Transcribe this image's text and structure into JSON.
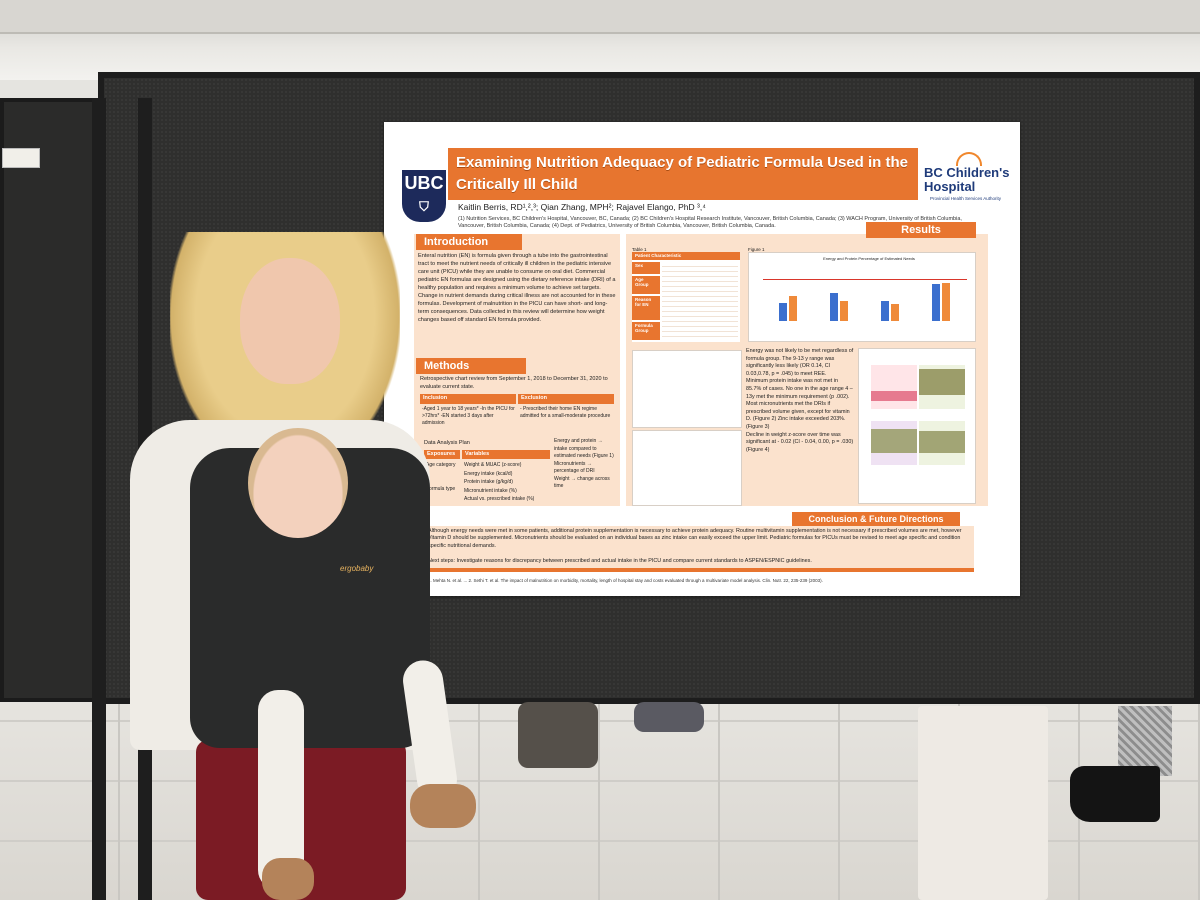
{
  "poster": {
    "title": "Examining Nutrition Adequacy of Pediatric Formula Used in the Critically Ill Child",
    "authors": "Kaitlin Berris, RD¹,²,³; Qian Zhang, MPH²; Rajavel Elango, PhD ³,⁴",
    "affiliations": "(1) Nutrition Services, BC Children's Hospital, Vancouver, BC, Canada; (2) BC Children's Hospital Research Institute, Vancouver, British Columbia, Canada; (3) WACH Program, University of British Columbia, Vancouver, British Columbia, Canada; (4) Dept. of Pediatrics, University of British Columbia, Vancouver, British Columbia, Canada.",
    "logo_left": "UBC",
    "logo_right": "BC Children's Hospital",
    "logo_right_sub": "Provincial Health Services Authority",
    "sections": {
      "introduction": {
        "heading": "Introduction",
        "text": "Enteral nutrition (EN) is formula given through a tube into the gastrointestinal tract to meet the nutrient needs of critically ill children in the pediatric intensive care unit (PICU) while they are unable to consume on oral diet. Commercial pediatric EN formulas are designed using the dietary reference intake (DRI) of a healthy population and requires a minimum volume to achieve set targets. Change in nutrient demands during critical illness are not accounted for in these formulas. Development of malnutrition in the PICU can have short- and long-term consequences. Data collected in this review will determine how weight changes based off standard EN formula provided."
      },
      "methods": {
        "heading": "Methods",
        "text": "Retrospective chart review from September 1, 2018 to December 31, 2020 to evaluate current state.",
        "inclusion_head": "Inclusion",
        "exclusion_head": "Exclusion",
        "inclusion": "-Aged 1 year to 18 years* -In the PICU for >72hrs* -EN started 3 days after admission",
        "exclusion": "- Prescribed their home EN regime admitted for a small-moderate procedure",
        "plan_title": "Data Analysis Plan",
        "plan_head_exposures": "Exposures",
        "plan_head_variables": "Variables",
        "exposures": [
          "Age category",
          "Formula type"
        ],
        "variables": [
          "Weight & MUAC (z-score)",
          "Energy intake (kcal/d)",
          "Protein intake (g/kg/d)",
          "Micronutrient intake (%)",
          "Actual vs. prescribed intake (%)"
        ],
        "outcomes": [
          "Energy and protein → intake compared to estimated needs (Figure 1)",
          "Micronutrients → percentage of DRI",
          "Weight → change across time"
        ]
      },
      "results": {
        "heading": "Results",
        "table_title": "Table 1",
        "table_head": [
          "Patient Characteristic",
          "n",
          "%"
        ],
        "table_groups": [
          "Sex",
          "Age Group",
          "Reason for EN",
          "Formula Group"
        ],
        "figure1_title": "Figure 1",
        "figure1_caption": "Energy and Protein Percentage of Estimated Needs",
        "bullets": [
          "Energy was not likely to be met regardless of formula group. The 9-13 y range was significantly less likely (OR 0.14, CI 0.03,0.78, p = .045) to meet REE.",
          "Minimum protein intake was not met in 85.7% of cases. No one in the age range 4 – 13y met the minimum requirement (p .002).",
          "Most micronutrients met the DRIs if prescribed volume given, except for vitamin D. (Figure 2) Zinc intake exceeded 203%. (Figure 3)",
          "Decline in weight z-score over time was significant at - 0.02 (CI - 0.04, 0.00, p = .030) (Figure 4)"
        ]
      },
      "conclusion": {
        "heading": "Conclusion & Future Directions",
        "text": "Although energy needs were met in some patients, additional protein supplementation is necessary to achieve protein adequacy. Routine multivitamin supplementation is not necessary if prescribed volumes are met, however Vitamin D should be supplemented. Micronutrients should be evaluated on an individual bases as zinc intake can easily exceed the upper limit. Pediatric formulas for PICUs must be revised to meet age specific and condition specific nutritional demands.",
        "next_steps": "Next steps: Investigate reasons for discrepancy between prescribed and actual intake in the PICU and compare current standards to ASPEN/ESPNIC guidelines."
      },
      "references": "1. Mehta N. et al. ... 2. Sethi T. et al. The impact of malnutrition on morbidity, mortality, length of hospital stay and costs evaluated through a multivariate model analysis. Clin. Nutr. 22, 235-239 (2003)."
    },
    "figure1": {
      "groups": [
        {
          "blue": 0.45,
          "orange": 0.62
        },
        {
          "blue": 0.7,
          "orange": 0.5
        },
        {
          "blue": 0.5,
          "orange": 0.42
        },
        {
          "blue": 0.92,
          "orange": 0.95
        }
      ]
    }
  },
  "scene": {
    "carrier_brand": "ergobaby"
  },
  "colors": {
    "accent_orange": "#e8752f",
    "poster_cream": "#fbe2cd",
    "series_blue": "#3b6fce",
    "series_orange": "#ef8a3a"
  }
}
